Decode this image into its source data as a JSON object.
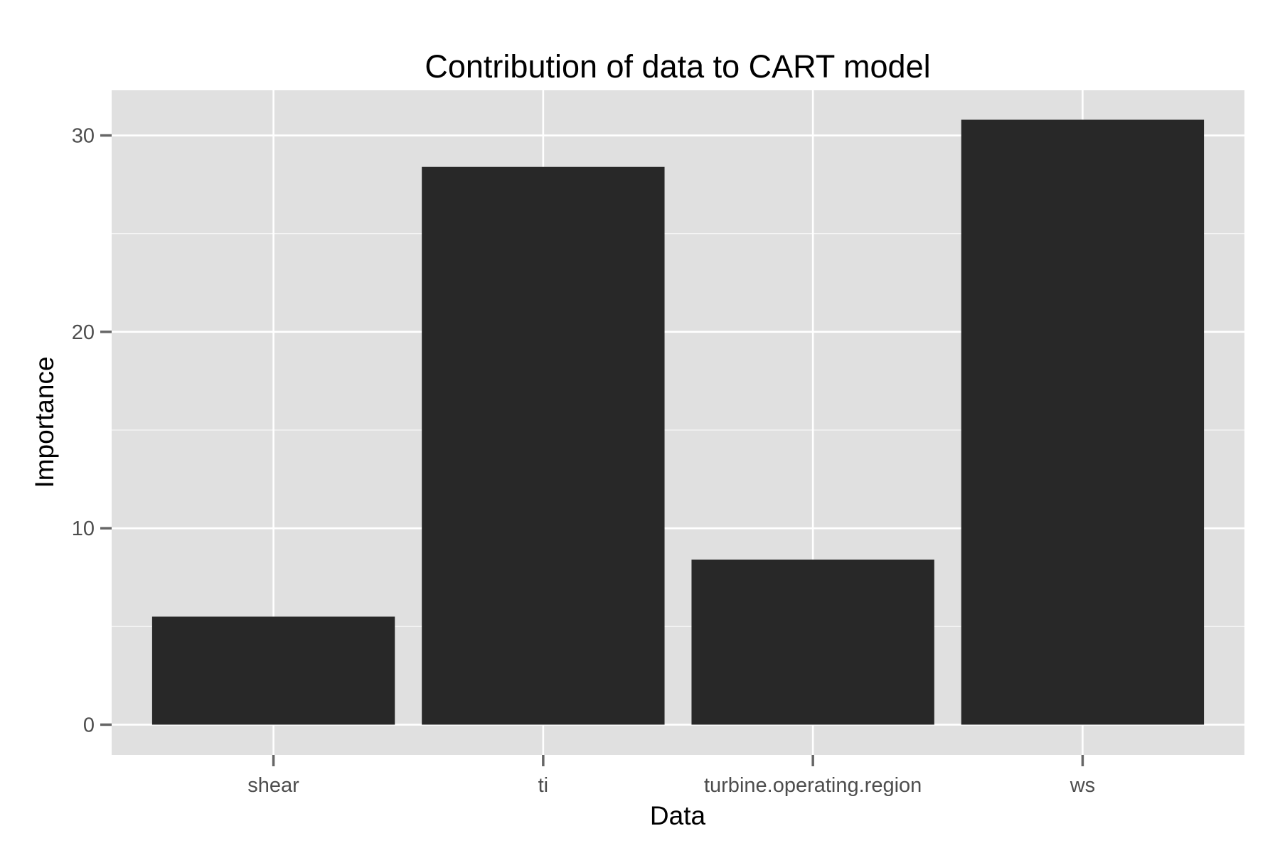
{
  "chart_data": {
    "type": "bar",
    "title": "Contribution of data to CART model",
    "xlabel": "Data",
    "ylabel": "Importance",
    "categories": [
      "shear",
      "ti",
      "turbine.operating.region",
      "ws"
    ],
    "values": [
      5.5,
      28.4,
      8.4,
      30.8
    ],
    "ylim": [
      -1.54,
      32.3
    ],
    "yticks": [
      0,
      10,
      20,
      30
    ],
    "grid": true,
    "legend": "none",
    "colors": {
      "panel": "#e0e0e0",
      "bar": "#282828",
      "grid": "#ffffff",
      "tick": "#666666"
    }
  }
}
